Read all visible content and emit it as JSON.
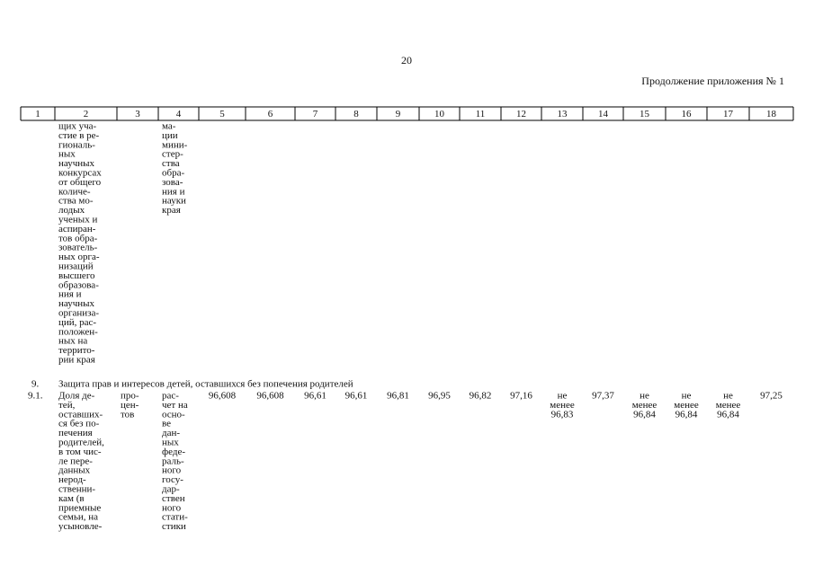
{
  "page_number": "20",
  "subtitle": "Продолжение приложения № 1",
  "table": {
    "columns": [
      "1",
      "2",
      "3",
      "4",
      "5",
      "6",
      "7",
      "8",
      "9",
      "10",
      "11",
      "12",
      "13",
      "14",
      "15",
      "16",
      "17",
      "18"
    ],
    "rows": [
      {
        "cells": {
          "1": [
            "щих уча-",
            "стие в ре-",
            "гиональ-",
            "ных",
            "научных",
            "конкурсах",
            "от общего",
            "количе-",
            "ства мо-",
            "лодых",
            "ученых и",
            "аспиран-",
            "тов обра-",
            "зователь-",
            "ных орга-",
            "низаций",
            "высшего",
            "образова-",
            "ния и",
            "научных",
            "организа-",
            "ций, рас-",
            "положен-",
            "ных на",
            "террито-",
            "рии края"
          ],
          "3": [
            "ма-",
            "ции",
            "мини-",
            "стер-",
            "ства",
            "обра-",
            "зова-",
            "ния и",
            "науки",
            "края"
          ]
        }
      },
      {
        "number": "9.",
        "title": "Защита прав и интересов детей, оставшихся без попечения родителей"
      },
      {
        "cells": {
          "0": [
            "9.1."
          ],
          "1": [
            "Доля де-",
            "тей,",
            "оставших-",
            "ся без по-",
            "печения",
            "родителей,",
            "в том чис-",
            "ле пере-",
            "данных",
            "нерод-",
            "ственни-",
            "кам (в",
            "приемные",
            "семьи, на",
            "усыновле-"
          ],
          "2": [
            "про-",
            "цен-",
            "тов"
          ],
          "3": [
            "рас-",
            "чет на",
            "осно-",
            "ве",
            "дан-",
            "ных",
            "феде-",
            "раль-",
            "ного",
            "госу-",
            "дар-",
            "ствен",
            "ного",
            "стати-",
            "стики"
          ],
          "4": [
            "96,608"
          ],
          "5": [
            "96,608"
          ],
          "6": [
            "96,61"
          ],
          "7": [
            "96,61"
          ],
          "8": [
            "96,81"
          ],
          "9": [
            "96,95"
          ],
          "10": [
            "96,82"
          ],
          "11": [
            "97,16"
          ],
          "12": [
            "не",
            "менее",
            "96,83"
          ],
          "13": [
            "97,37"
          ],
          "14": [
            "не",
            "менее",
            "96,84"
          ],
          "15": [
            "не",
            "менее",
            "96,84"
          ],
          "16": [
            "не",
            "менее",
            "96,84"
          ],
          "17": [
            "97,25"
          ]
        }
      }
    ]
  }
}
